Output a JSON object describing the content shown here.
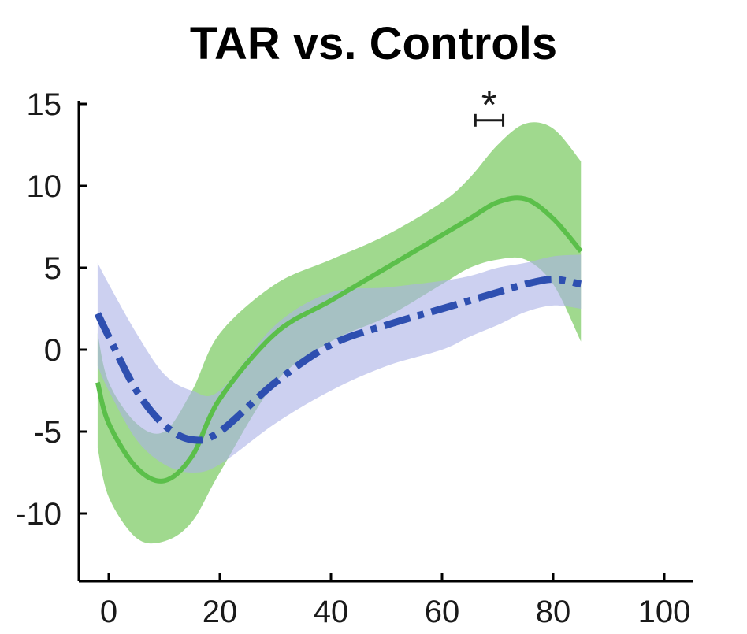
{
  "chart_data": {
    "type": "line",
    "title": "TAR vs. Controls",
    "xlabel": "",
    "ylabel": "",
    "xlim": [
      -5,
      100
    ],
    "ylim": [
      -15,
      16
    ],
    "xticks": [
      0,
      20,
      40,
      60,
      80,
      100
    ],
    "yticks": [
      15,
      10,
      5,
      0,
      -5,
      -10
    ],
    "grid": false,
    "legend": "none",
    "series": [
      {
        "style": "solid",
        "color": "#5bbf4a",
        "band_color": "#8fd27a",
        "x": [
          -2,
          0,
          5,
          10,
          15,
          20,
          30,
          40,
          50,
          60,
          65,
          70,
          75,
          80,
          85
        ],
        "y": [
          -2,
          -4.5,
          -7.2,
          -8,
          -6.5,
          -3,
          1,
          3,
          5,
          7,
          8,
          9,
          9.2,
          8,
          6
        ],
        "upper": [
          1,
          -2,
          -4.5,
          -5,
          -2.5,
          1,
          4,
          5.5,
          7,
          9,
          10.5,
          12.5,
          13.8,
          13.5,
          11.5
        ],
        "lower": [
          -6,
          -9,
          -11.5,
          -11.7,
          -10.5,
          -7.5,
          -2,
          0.5,
          2,
          4,
          5,
          5.5,
          5.5,
          4,
          0.5
        ]
      },
      {
        "style": "dashdot",
        "color": "#2e4fb0",
        "band_color": "#aab0e6",
        "x": [
          -2,
          0,
          5,
          10,
          15,
          20,
          30,
          40,
          50,
          60,
          65,
          70,
          75,
          80,
          85
        ],
        "y": [
          2.2,
          0.8,
          -2.5,
          -4.6,
          -5.5,
          -5,
          -2,
          0.3,
          1.5,
          2.5,
          3,
          3.5,
          4,
          4.3,
          4
        ],
        "upper": [
          5.3,
          4,
          1,
          -1.5,
          -2.5,
          -2.5,
          1.5,
          3.5,
          3.8,
          4.2,
          4.5,
          5,
          5.3,
          5.7,
          5.8
        ],
        "lower": [
          -1,
          -2.5,
          -5.5,
          -7,
          -7.5,
          -7,
          -4.5,
          -2.5,
          -1,
          0,
          0.8,
          1.5,
          2.3,
          2.7,
          2.5
        ]
      }
    ],
    "annotations": [
      {
        "text": "*",
        "x_range": [
          66,
          71
        ],
        "y": 14
      }
    ]
  }
}
